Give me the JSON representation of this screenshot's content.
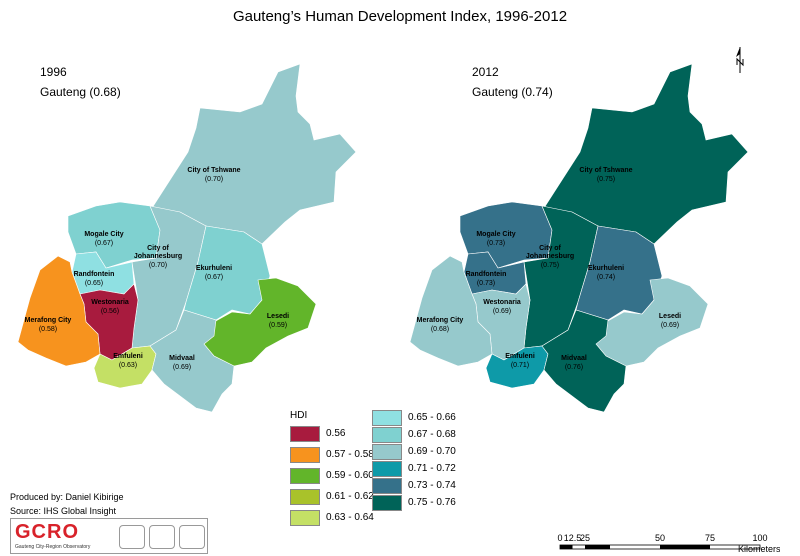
{
  "title": "Gauteng’s Human Development Index, 1996-2012",
  "panels": [
    {
      "year": "1996",
      "subtitle": "Gauteng (0.68)"
    },
    {
      "year": "2012",
      "subtitle": "Gauteng (0.74)"
    }
  ],
  "municipalities_1996": [
    {
      "name": "City of Tshwane",
      "value": "(0.70)",
      "color": "#96c9cc"
    },
    {
      "name": "Mogale City",
      "value": "(0.67)",
      "color": "#7fd1d0"
    },
    {
      "name": "City of Johannesburg",
      "value": "(0.70)",
      "color": "#96c9cc"
    },
    {
      "name": "Ekurhuleni",
      "value": "(0.67)",
      "color": "#7fd1d0"
    },
    {
      "name": "Randfontein",
      "value": "(0.65)",
      "color": "#8fe0e2"
    },
    {
      "name": "Westonaria",
      "value": "(0.56)",
      "color": "#a81b3e"
    },
    {
      "name": "Merafong City",
      "value": "(0.58)",
      "color": "#f7931e"
    },
    {
      "name": "Lesedi",
      "value": "(0.59)",
      "color": "#62b52a"
    },
    {
      "name": "Emfuleni",
      "value": "(0.63)",
      "color": "#c4e065"
    },
    {
      "name": "Midvaal",
      "value": "(0.69)",
      "color": "#96c9cc"
    }
  ],
  "municipalities_2012": [
    {
      "name": "City of Tshwane",
      "value": "(0.75)",
      "color": "#006358"
    },
    {
      "name": "Mogale City",
      "value": "(0.73)",
      "color": "#35718a"
    },
    {
      "name": "City of Johannesburg",
      "value": "(0.75)",
      "color": "#006358"
    },
    {
      "name": "Ekurhuleni",
      "value": "(0.74)",
      "color": "#35718a"
    },
    {
      "name": "Randfontein",
      "value": "(0.73)",
      "color": "#35718a"
    },
    {
      "name": "Westonaria",
      "value": "(0.69)",
      "color": "#96c9cc"
    },
    {
      "name": "Merafong City",
      "value": "(0.68)",
      "color": "#96c9cc"
    },
    {
      "name": "Lesedi",
      "value": "(0.69)",
      "color": "#96c9cc"
    },
    {
      "name": "Emfuleni",
      "value": "(0.71)",
      "color": "#0e9aa8"
    },
    {
      "name": "Midvaal",
      "value": "(0.76)",
      "color": "#006358"
    }
  ],
  "legend": {
    "title": "HDI",
    "items": [
      {
        "label": "0.56",
        "color": "#a81b3e"
      },
      {
        "label": "0.57 - 0.58",
        "color": "#f7931e"
      },
      {
        "label": "0.59 - 0.60",
        "color": "#62b52a"
      },
      {
        "label": "0.61 - 0.62",
        "color": "#a9c22a"
      },
      {
        "label": "0.63 - 0.64",
        "color": "#c4e065"
      },
      {
        "label": "0.65 - 0.66",
        "color": "#8fe0e2"
      },
      {
        "label": "0.67 - 0.68",
        "color": "#7fd1d0"
      },
      {
        "label": "0.69 - 0.70",
        "color": "#96c9cc"
      },
      {
        "label": "0.71 - 0.72",
        "color": "#0e9aa8"
      },
      {
        "label": "0.73 - 0.74",
        "color": "#35718a"
      },
      {
        "label": "0.75 - 0.76",
        "color": "#006358"
      }
    ]
  },
  "credits": {
    "produced_by": "Produced by: Daniel Kibirige",
    "source": "Source: IHS Global Insight"
  },
  "logo": {
    "text": "GCRO",
    "subtitle": "Gauteng City-Region Observatory"
  },
  "scale": {
    "ticks": [
      "0",
      "12.5",
      "25",
      "50",
      "75",
      "100"
    ],
    "unit": "Kilometers"
  },
  "north_icon": "north-arrow-icon"
}
